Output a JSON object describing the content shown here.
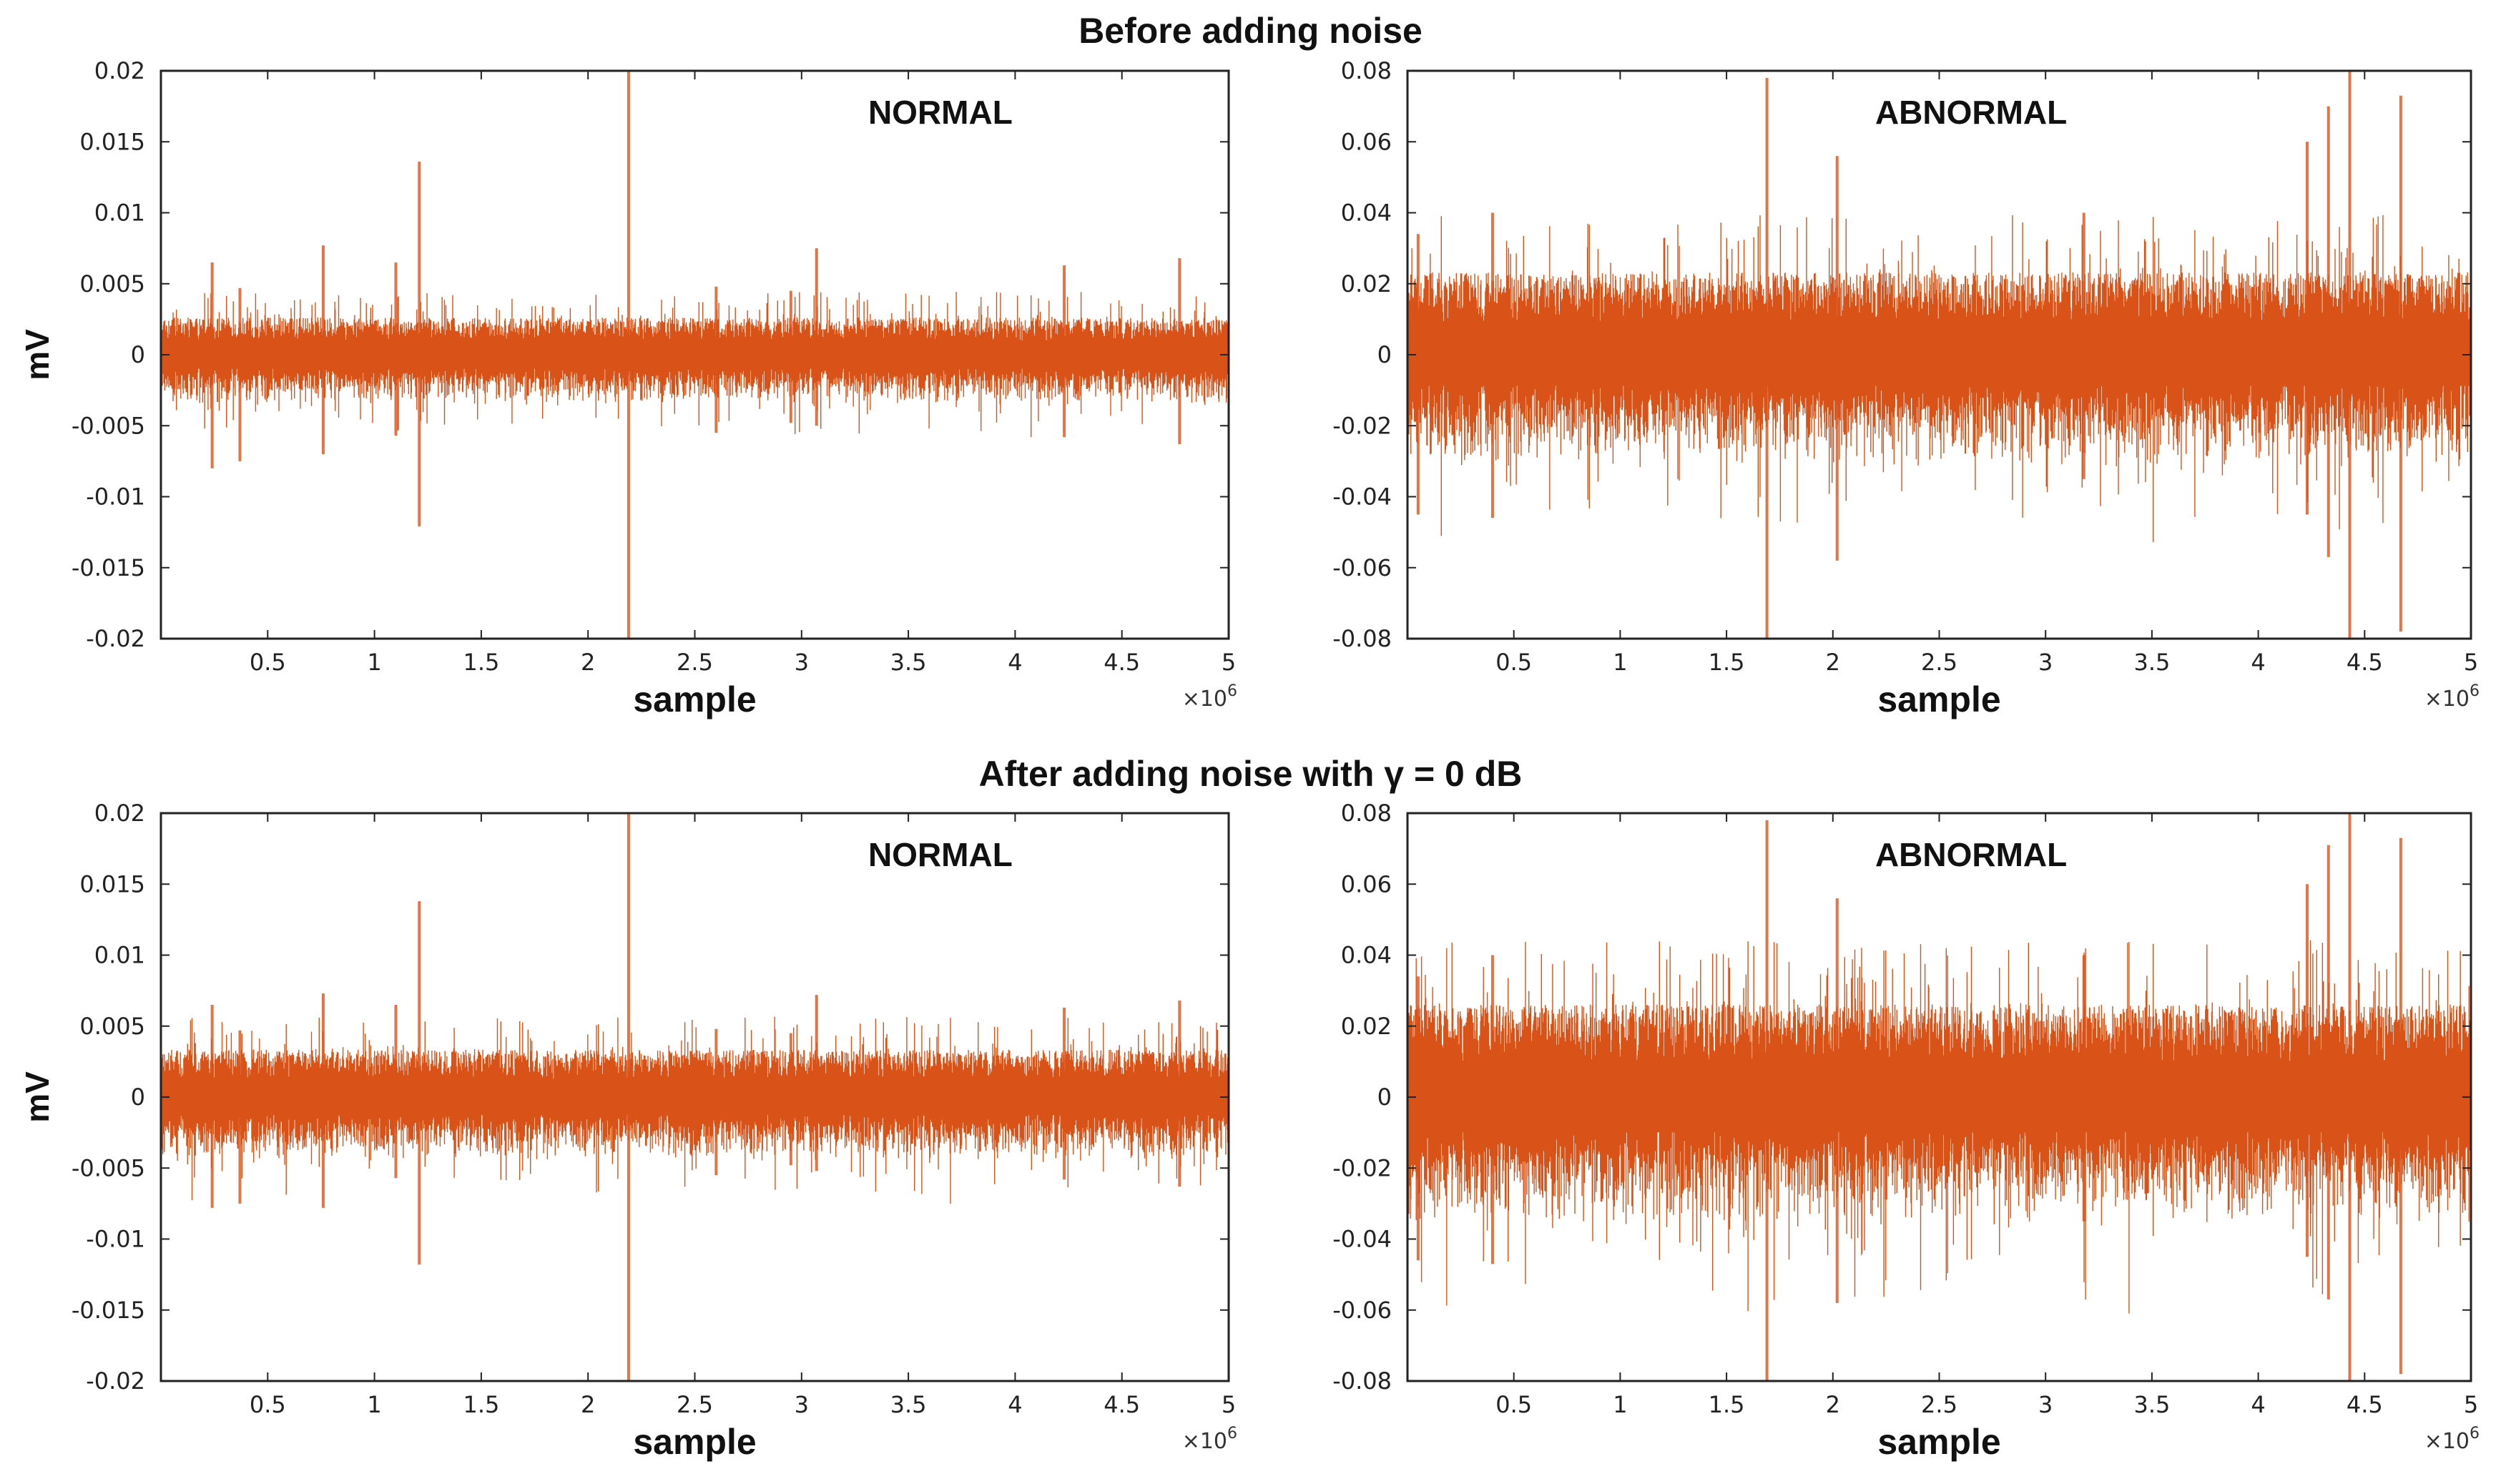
{
  "sections": {
    "top_title": "Before adding noise",
    "bottom_title": "After adding noise with γ = 0 dB"
  },
  "colors": {
    "signal": "#d95319",
    "axis": "#222222"
  },
  "chart_data": [
    {
      "id": "before-normal",
      "type": "line",
      "series_name": "NORMAL",
      "label": "NORMAL",
      "xlabel": "sample",
      "ylabel": "mV",
      "x_multiplier": "×10",
      "x_multiplier_exp": "6",
      "xlim": [
        0,
        5
      ],
      "ylim": [
        -0.02,
        0.02
      ],
      "xticks": [
        0.5,
        1,
        1.5,
        2,
        2.5,
        3,
        3.5,
        4,
        4.5,
        5
      ],
      "xtick_labels": [
        "0.5",
        "1",
        "1.5",
        "2",
        "2.5",
        "3",
        "3.5",
        "4",
        "4.5",
        "5"
      ],
      "yticks": [
        0.02,
        0.015,
        0.01,
        0.005,
        0,
        -0.005,
        -0.01,
        -0.015,
        -0.02
      ],
      "ytick_labels": [
        "0.02",
        "0.015",
        "0.01",
        "0.005",
        "0",
        "-0.005",
        "-0.01",
        "-0.015",
        "-0.02"
      ],
      "noise_band": 0.0018,
      "spikes": [
        {
          "x": 0.24,
          "top": 0.0065,
          "bottom": -0.008
        },
        {
          "x": 0.37,
          "top": 0.0047,
          "bottom": -0.0075
        },
        {
          "x": 0.76,
          "top": 0.0077,
          "bottom": -0.007
        },
        {
          "x": 1.1,
          "top": 0.0065,
          "bottom": -0.0057
        },
        {
          "x": 1.21,
          "top": 0.0136,
          "bottom": -0.0121
        },
        {
          "x": 2.19,
          "top": 0.02,
          "bottom": -0.02
        },
        {
          "x": 2.6,
          "top": 0.0048,
          "bottom": -0.0055
        },
        {
          "x": 2.95,
          "top": 0.0045,
          "bottom": -0.0048
        },
        {
          "x": 3.07,
          "top": 0.0075,
          "bottom": -0.005
        },
        {
          "x": 4.23,
          "top": 0.0063,
          "bottom": -0.0058
        },
        {
          "x": 4.77,
          "top": 0.0068,
          "bottom": -0.0063
        }
      ]
    },
    {
      "id": "before-abnormal",
      "type": "line",
      "series_name": "ABNORMAL",
      "label": "ABNORMAL",
      "xlabel": "sample",
      "ylabel": "",
      "x_multiplier": "×10",
      "x_multiplier_exp": "6",
      "xlim": [
        0,
        5
      ],
      "ylim": [
        -0.08,
        0.08
      ],
      "xticks": [
        0.5,
        1,
        1.5,
        2,
        2.5,
        3,
        3.5,
        4,
        4.5,
        5
      ],
      "xtick_labels": [
        "0.5",
        "1",
        "1.5",
        "2",
        "2.5",
        "3",
        "3.5",
        "4",
        "4.5",
        "5"
      ],
      "yticks": [
        0.08,
        0.06,
        0.04,
        0.02,
        0,
        -0.02,
        -0.04,
        -0.06,
        -0.08
      ],
      "ytick_labels": [
        "0.08",
        "0.06",
        "0.04",
        "0.02",
        "0",
        "-0.02",
        "-0.04",
        "-0.06",
        "-0.08"
      ],
      "noise_band": 0.016,
      "spikes": [
        {
          "x": 0.05,
          "top": 0.034,
          "bottom": -0.045
        },
        {
          "x": 0.4,
          "top": 0.04,
          "bottom": -0.046
        },
        {
          "x": 1.69,
          "top": 0.078,
          "bottom": -0.08
        },
        {
          "x": 2.02,
          "top": 0.056,
          "bottom": -0.058
        },
        {
          "x": 3.18,
          "top": 0.04,
          "bottom": -0.035
        },
        {
          "x": 4.23,
          "top": 0.06,
          "bottom": -0.045
        },
        {
          "x": 4.33,
          "top": 0.07,
          "bottom": -0.057
        },
        {
          "x": 4.43,
          "top": 0.08,
          "bottom": -0.08
        },
        {
          "x": 4.67,
          "top": 0.073,
          "bottom": -0.078
        }
      ]
    },
    {
      "id": "after-normal",
      "type": "line",
      "series_name": "NORMAL",
      "label": "NORMAL",
      "xlabel": "sample",
      "ylabel": "mV",
      "x_multiplier": "×10",
      "x_multiplier_exp": "6",
      "xlim": [
        0,
        5
      ],
      "ylim": [
        -0.02,
        0.02
      ],
      "xticks": [
        0.5,
        1,
        1.5,
        2,
        2.5,
        3,
        3.5,
        4,
        4.5,
        5
      ],
      "xtick_labels": [
        "0.5",
        "1",
        "1.5",
        "2",
        "2.5",
        "3",
        "3.5",
        "4",
        "4.5",
        "5"
      ],
      "yticks": [
        0.02,
        0.015,
        0.01,
        0.005,
        0,
        -0.005,
        -0.01,
        -0.015,
        -0.02
      ],
      "ytick_labels": [
        "0.02",
        "0.015",
        "0.01",
        "0.005",
        "0",
        "-0.005",
        "-0.01",
        "-0.015",
        "-0.02"
      ],
      "noise_band": 0.0023,
      "spikes": [
        {
          "x": 0.24,
          "top": 0.0065,
          "bottom": -0.0078
        },
        {
          "x": 0.37,
          "top": 0.0047,
          "bottom": -0.0075
        },
        {
          "x": 0.76,
          "top": 0.0073,
          "bottom": -0.0078
        },
        {
          "x": 1.1,
          "top": 0.0065,
          "bottom": -0.0057
        },
        {
          "x": 1.21,
          "top": 0.0138,
          "bottom": -0.0118
        },
        {
          "x": 2.19,
          "top": 0.02,
          "bottom": -0.02
        },
        {
          "x": 2.6,
          "top": 0.0048,
          "bottom": -0.0055
        },
        {
          "x": 2.95,
          "top": 0.0045,
          "bottom": -0.0048
        },
        {
          "x": 3.07,
          "top": 0.0072,
          "bottom": -0.0052
        },
        {
          "x": 4.23,
          "top": 0.0063,
          "bottom": -0.0058
        },
        {
          "x": 4.77,
          "top": 0.0068,
          "bottom": -0.0063
        }
      ]
    },
    {
      "id": "after-abnormal",
      "type": "line",
      "series_name": "ABNORMAL",
      "label": "ABNORMAL",
      "xlabel": "sample",
      "ylabel": "",
      "x_multiplier": "×10",
      "x_multiplier_exp": "6",
      "xlim": [
        0,
        5
      ],
      "ylim": [
        -0.08,
        0.08
      ],
      "xticks": [
        0.5,
        1,
        1.5,
        2,
        2.5,
        3,
        3.5,
        4,
        4.5,
        5
      ],
      "xtick_labels": [
        "0.5",
        "1",
        "1.5",
        "2",
        "2.5",
        "3",
        "3.5",
        "4",
        "4.5",
        "5"
      ],
      "yticks": [
        0.08,
        0.06,
        0.04,
        0.02,
        0,
        -0.02,
        -0.04,
        -0.06,
        -0.08
      ],
      "ytick_labels": [
        "0.08",
        "0.06",
        "0.04",
        "0.02",
        "0",
        "-0.02",
        "-0.04",
        "-0.06",
        "-0.08"
      ],
      "noise_band": 0.018,
      "spikes": [
        {
          "x": 0.05,
          "top": 0.034,
          "bottom": -0.046
        },
        {
          "x": 0.4,
          "top": 0.04,
          "bottom": -0.047
        },
        {
          "x": 1.69,
          "top": 0.078,
          "bottom": -0.08
        },
        {
          "x": 2.02,
          "top": 0.056,
          "bottom": -0.058
        },
        {
          "x": 3.18,
          "top": 0.04,
          "bottom": -0.035
        },
        {
          "x": 4.23,
          "top": 0.06,
          "bottom": -0.045
        },
        {
          "x": 4.33,
          "top": 0.071,
          "bottom": -0.057
        },
        {
          "x": 4.43,
          "top": 0.08,
          "bottom": -0.08
        },
        {
          "x": 4.67,
          "top": 0.073,
          "bottom": -0.078
        }
      ]
    }
  ]
}
